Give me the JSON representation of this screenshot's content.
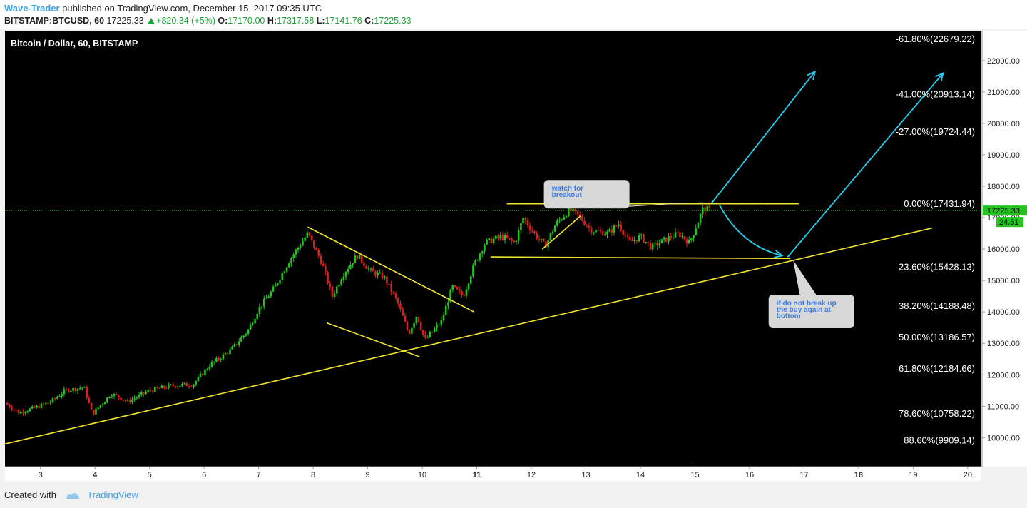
{
  "header": {
    "author": "Wave-Trader",
    "published_text": " published on TradingView.com, December 15, 2017 09:35 UTC",
    "symbol_interval": "BITSTAMP:BTCUSD, 60",
    "last_price": "17225.33",
    "change": "+820.34 (+5%)",
    "open_label": "O:",
    "open": "17170.00",
    "high_label": "H:",
    "high": "17317.58",
    "low_label": "L:",
    "low": "17141.76",
    "close_label": "C:",
    "close": "17225.33"
  },
  "footer": {
    "created_with": "Created with",
    "brand": "TradingView"
  },
  "colors": {
    "background": "#000000",
    "up_candle": "#23c41f",
    "down_candle": "#d9201d",
    "trendline": "#f2e52c",
    "arrow": "#28d0f0",
    "price_line": "#28c828",
    "axis_text": "#222222",
    "callout_fill": "#d8d8d8",
    "callout_text": "#3b7be6"
  },
  "chart_data": {
    "type": "candlestick",
    "title": "Bitcoin / Dollar, 60, BITSTAMP",
    "x_range": [
      2.35,
      20.25
    ],
    "ylim": [
      9100,
      22950
    ],
    "x_ticks": [
      {
        "value": 3,
        "label": "3",
        "bold": false
      },
      {
        "value": 4,
        "label": "4",
        "bold": true
      },
      {
        "value": 5,
        "label": "5",
        "bold": false
      },
      {
        "value": 6,
        "label": "6",
        "bold": false
      },
      {
        "value": 7,
        "label": "7",
        "bold": false
      },
      {
        "value": 8,
        "label": "8",
        "bold": false
      },
      {
        "value": 9,
        "label": "9",
        "bold": false
      },
      {
        "value": 10,
        "label": "10",
        "bold": false
      },
      {
        "value": 11,
        "label": "11",
        "bold": true
      },
      {
        "value": 12,
        "label": "12",
        "bold": false
      },
      {
        "value": 13,
        "label": "13",
        "bold": false
      },
      {
        "value": 14,
        "label": "14",
        "bold": false
      },
      {
        "value": 15,
        "label": "15",
        "bold": false
      },
      {
        "value": 16,
        "label": "16",
        "bold": false
      },
      {
        "value": 17,
        "label": "17",
        "bold": false
      },
      {
        "value": 18,
        "label": "18",
        "bold": true
      },
      {
        "value": 19,
        "label": "19",
        "bold": false
      },
      {
        "value": 20,
        "label": "20",
        "bold": false
      }
    ],
    "y_ticks": [
      {
        "value": 22000,
        "label": "22000.00"
      },
      {
        "value": 21000,
        "label": "21000.00"
      },
      {
        "value": 20000,
        "label": "20000.00"
      },
      {
        "value": 19000,
        "label": "19000.00"
      },
      {
        "value": 18000,
        "label": "18000.00"
      },
      {
        "value": 17000,
        "label": "17000.00"
      },
      {
        "value": 16000,
        "label": "16000.00"
      },
      {
        "value": 15000,
        "label": "15000.00"
      },
      {
        "value": 14000,
        "label": "14000.00"
      },
      {
        "value": 13000,
        "label": "13000.00"
      },
      {
        "value": 12000,
        "label": "12000.00"
      },
      {
        "value": 11000,
        "label": "11000.00"
      },
      {
        "value": 10000,
        "label": "10000.00"
      }
    ],
    "current_price": {
      "value": 17225.33,
      "label": "17225.33",
      "countdown": "24.51"
    },
    "fib_levels": [
      {
        "value": 22679.22,
        "label": "-61.80%(22679.22)"
      },
      {
        "value": 20913.14,
        "label": "-41.00%(20913.14)"
      },
      {
        "value": 19724.44,
        "label": "-27.00%(19724.44)"
      },
      {
        "value": 17431.94,
        "label": "0.00%(17431.94)"
      },
      {
        "value": 15428.13,
        "label": "23.60%(15428.13)"
      },
      {
        "value": 14188.48,
        "label": "38.20%(14188.48)"
      },
      {
        "value": 13186.57,
        "label": "50.00%(13186.57)"
      },
      {
        "value": 12184.66,
        "label": "61.80%(12184.66)"
      },
      {
        "value": 10758.22,
        "label": "78.60%(10758.22)"
      },
      {
        "value": 9909.14,
        "label": "88.60%(9909.14)"
      }
    ],
    "price_path": [
      [
        2.35,
        11100
      ],
      [
        2.6,
        10800
      ],
      [
        2.9,
        10950
      ],
      [
        3.2,
        11150
      ],
      [
        3.45,
        11500
      ],
      [
        3.8,
        11600
      ],
      [
        3.95,
        10750
      ],
      [
        4.3,
        11400
      ],
      [
        4.6,
        11150
      ],
      [
        5.0,
        11500
      ],
      [
        5.4,
        11650
      ],
      [
        5.8,
        11700
      ],
      [
        6.1,
        12300
      ],
      [
        6.5,
        12800
      ],
      [
        6.8,
        13400
      ],
      [
        7.0,
        14100
      ],
      [
        7.3,
        14800
      ],
      [
        7.55,
        15600
      ],
      [
        7.9,
        16500
      ],
      [
        8.15,
        15600
      ],
      [
        8.35,
        14500
      ],
      [
        8.55,
        15200
      ],
      [
        8.8,
        15800
      ],
      [
        9.05,
        15300
      ],
      [
        9.3,
        15100
      ],
      [
        9.55,
        14300
      ],
      [
        9.75,
        13300
      ],
      [
        9.9,
        13900
      ],
      [
        10.05,
        13100
      ],
      [
        10.35,
        13700
      ],
      [
        10.55,
        14800
      ],
      [
        10.75,
        14500
      ],
      [
        10.95,
        15500
      ],
      [
        11.15,
        16200
      ],
      [
        11.45,
        16400
      ],
      [
        11.7,
        16200
      ],
      [
        11.85,
        17000
      ],
      [
        12.05,
        16500
      ],
      [
        12.25,
        16100
      ],
      [
        12.45,
        16800
      ],
      [
        12.7,
        17250
      ],
      [
        12.9,
        17000
      ],
      [
        13.1,
        16600
      ],
      [
        13.4,
        16500
      ],
      [
        13.6,
        16800
      ],
      [
        13.8,
        16200
      ],
      [
        14.0,
        16400
      ],
      [
        14.2,
        16050
      ],
      [
        14.45,
        16300
      ],
      [
        14.7,
        16500
      ],
      [
        14.9,
        16200
      ],
      [
        15.05,
        16850
      ],
      [
        15.15,
        17300
      ],
      [
        15.3,
        17225
      ]
    ],
    "trendlines": [
      {
        "name": "long-term-support",
        "points": [
          [
            2.35,
            9800
          ],
          [
            19.35,
            16670
          ]
        ]
      },
      {
        "name": "channel-upper",
        "points": [
          [
            7.9,
            16700
          ],
          [
            10.95,
            14000
          ]
        ]
      },
      {
        "name": "channel-lower",
        "points": [
          [
            8.25,
            13650
          ],
          [
            9.95,
            12570
          ]
        ]
      },
      {
        "name": "range-top",
        "points": [
          [
            11.55,
            17440
          ],
          [
            16.9,
            17440
          ]
        ]
      },
      {
        "name": "range-bottom",
        "points": [
          [
            11.25,
            15750
          ],
          [
            16.75,
            15700
          ]
        ]
      },
      {
        "name": "inner-rise",
        "points": [
          [
            12.2,
            16000
          ],
          [
            12.9,
            17050
          ]
        ]
      }
    ],
    "arrows": [
      {
        "name": "breakout-arrow",
        "type": "line",
        "points": [
          [
            15.3,
            17450
          ],
          [
            17.2,
            21650
          ]
        ]
      },
      {
        "name": "bounce-arrow",
        "type": "line",
        "points": [
          [
            16.7,
            15750
          ],
          [
            19.55,
            21600
          ]
        ]
      },
      {
        "name": "pullback-arrow",
        "type": "curve",
        "points": [
          [
            15.45,
            17400
          ],
          [
            15.85,
            16100
          ],
          [
            16.6,
            15790
          ]
        ]
      }
    ],
    "callouts": [
      {
        "name": "watch-breakout-callout",
        "lines": [
          "watch for",
          "breakout"
        ],
        "anchor": [
          12.23,
          18200
        ],
        "tail": [
          15.3,
          17500
        ]
      },
      {
        "name": "buy-bottom-callout",
        "lines": [
          "if do not break up",
          "the buy again at",
          "bottom"
        ],
        "anchor": [
          16.35,
          14550
        ],
        "tail": [
          16.8,
          15650
        ]
      }
    ]
  }
}
